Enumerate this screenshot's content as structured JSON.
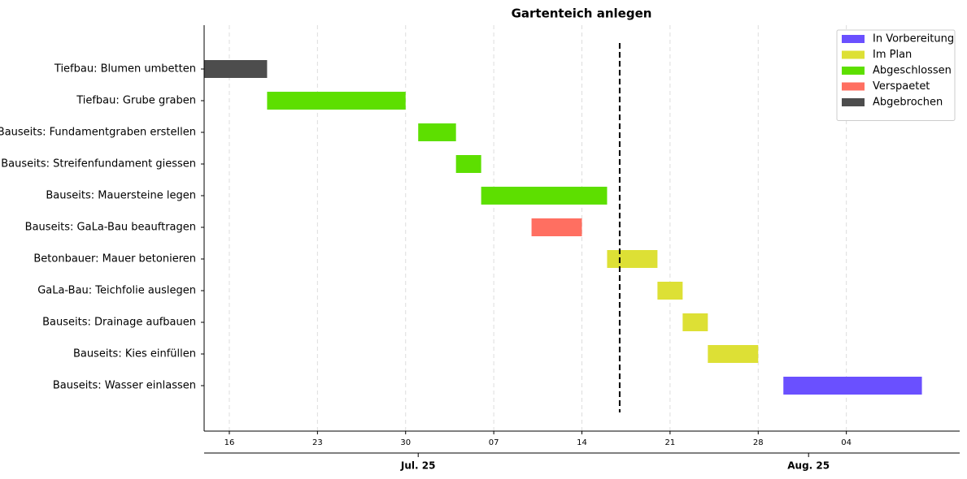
{
  "chart_data": {
    "type": "gantt",
    "title": "Gartenteich anlegen",
    "legend_position": "upper right",
    "statuses": [
      {
        "name": "In Vorbereitung",
        "color": "#6a50ff"
      },
      {
        "name": "Im Plan",
        "color": "#dde035"
      },
      {
        "name": "Abgeschlossen",
        "color": "#5ddf00"
      },
      {
        "name": "Verspaetet",
        "color": "#ff6f61"
      },
      {
        "name": "Abgebrochen",
        "color": "#4d4d4d"
      }
    ],
    "tasks": [
      {
        "name": "Tiefbau: Blumen umbetten",
        "start": "2025-06-14",
        "end": "2025-06-19",
        "status": "Abgebrochen"
      },
      {
        "name": "Tiefbau: Grube graben",
        "start": "2025-06-19",
        "end": "2025-06-30",
        "status": "Abgeschlossen"
      },
      {
        "name": "Bauseits: Fundamentgraben erstellen",
        "start": "2025-07-01",
        "end": "2025-07-04",
        "status": "Abgeschlossen"
      },
      {
        "name": "Bauseits: Streifenfundament giessen",
        "start": "2025-07-04",
        "end": "2025-07-06",
        "status": "Abgeschlossen"
      },
      {
        "name": "Bauseits: Mauersteine legen",
        "start": "2025-07-06",
        "end": "2025-07-16",
        "status": "Abgeschlossen"
      },
      {
        "name": "Bauseits: GaLa-Bau beauftragen",
        "start": "2025-07-10",
        "end": "2025-07-14",
        "status": "Verspaetet"
      },
      {
        "name": "Betonbauer: Mauer betonieren",
        "start": "2025-07-16",
        "end": "2025-07-20",
        "status": "Im Plan"
      },
      {
        "name": "GaLa-Bau: Teichfolie auslegen",
        "start": "2025-07-20",
        "end": "2025-07-22",
        "status": "Im Plan"
      },
      {
        "name": "Bauseits: Drainage aufbauen",
        "start": "2025-07-22",
        "end": "2025-07-24",
        "status": "Im Plan"
      },
      {
        "name": "Bauseits: Kies einfüllen",
        "start": "2025-07-24",
        "end": "2025-07-28",
        "status": "Im Plan"
      },
      {
        "name": "Bauseits: Wasser einlassen",
        "start": "2025-07-30",
        "end": "2025-08-10",
        "status": "In Vorbereitung"
      }
    ],
    "today": "2025-07-17",
    "xlim": [
      "2025-06-14",
      "2025-08-13"
    ],
    "xticks": [
      {
        "value": "2025-06-16",
        "label": "16"
      },
      {
        "value": "2025-06-23",
        "label": "23"
      },
      {
        "value": "2025-06-30",
        "label": "30"
      },
      {
        "value": "2025-07-07",
        "label": "07"
      },
      {
        "value": "2025-07-14",
        "label": "14"
      },
      {
        "value": "2025-07-21",
        "label": "21"
      },
      {
        "value": "2025-07-28",
        "label": "28"
      },
      {
        "value": "2025-08-04",
        "label": "04"
      }
    ],
    "month_ticks": [
      {
        "value": "2025-07-01",
        "label": "Jul. 25"
      },
      {
        "value": "2025-08-01",
        "label": "Aug. 25"
      }
    ],
    "grid": true
  }
}
